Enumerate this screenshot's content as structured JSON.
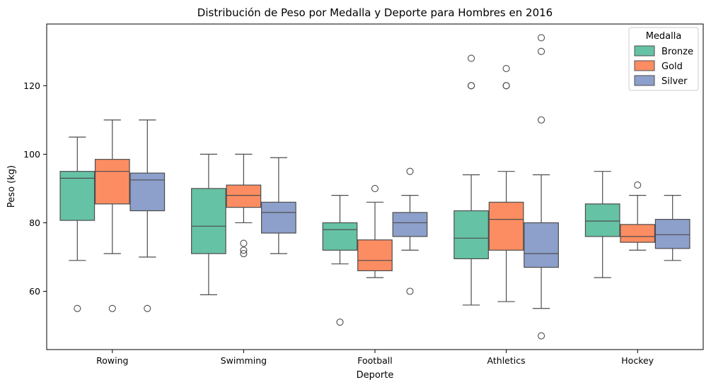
{
  "chart_data": {
    "type": "box",
    "title": "Distribución de Peso por Medalla y Deporte para Hombres en 2016",
    "xlabel": "Deporte",
    "ylabel": "Peso (kg)",
    "ylim": [
      43,
      138
    ],
    "yticks": [
      60,
      80,
      100,
      120
    ],
    "categories": [
      "Rowing",
      "Swimming",
      "Football",
      "Athletics",
      "Hockey"
    ],
    "legend": {
      "title": "Medalla",
      "position": "top-right"
    },
    "grid": false,
    "series": [
      {
        "name": "Bronze",
        "color": "#66c2a5",
        "boxes": [
          {
            "whislo": 69,
            "q1": 80.7,
            "med": 93,
            "q3": 95,
            "whishi": 105,
            "fliers": [
              55
            ]
          },
          {
            "whislo": 59,
            "q1": 71,
            "med": 79,
            "q3": 90,
            "whishi": 100,
            "fliers": []
          },
          {
            "whislo": 68,
            "q1": 72,
            "med": 78,
            "q3": 80,
            "whishi": 88,
            "fliers": [
              51
            ]
          },
          {
            "whislo": 56,
            "q1": 69.5,
            "med": 75.5,
            "q3": 83.5,
            "whishi": 94,
            "fliers": [
              120,
              120,
              128
            ]
          },
          {
            "whislo": 64,
            "q1": 76,
            "med": 80.5,
            "q3": 85.5,
            "whishi": 95,
            "fliers": []
          }
        ]
      },
      {
        "name": "Gold",
        "color": "#fc8d62",
        "boxes": [
          {
            "whislo": 71,
            "q1": 85.5,
            "med": 95,
            "q3": 98.5,
            "whishi": 110,
            "fliers": [
              55
            ]
          },
          {
            "whislo": 80,
            "q1": 84.5,
            "med": 88,
            "q3": 91,
            "whishi": 100,
            "fliers": [
              71,
              72,
              74
            ]
          },
          {
            "whislo": 64,
            "q1": 66,
            "med": 69,
            "q3": 75,
            "whishi": 86,
            "fliers": [
              90
            ]
          },
          {
            "whislo": 57,
            "q1": 72,
            "med": 81,
            "q3": 86,
            "whishi": 95,
            "fliers": [
              120,
              120,
              125
            ]
          },
          {
            "whislo": 72,
            "q1": 74.3,
            "med": 76,
            "q3": 79.5,
            "whishi": 88,
            "fliers": [
              91
            ]
          }
        ]
      },
      {
        "name": "Silver",
        "color": "#8da0cb",
        "boxes": [
          {
            "whislo": 70,
            "q1": 83.5,
            "med": 92.5,
            "q3": 94.5,
            "whishi": 110,
            "fliers": [
              55
            ]
          },
          {
            "whislo": 71,
            "q1": 77,
            "med": 83,
            "q3": 86,
            "whishi": 99,
            "fliers": []
          },
          {
            "whislo": 72,
            "q1": 76,
            "med": 80,
            "q3": 83,
            "whishi": 88,
            "fliers": [
              60,
              95
            ]
          },
          {
            "whislo": 55,
            "q1": 67,
            "med": 71,
            "q3": 80,
            "whishi": 94,
            "fliers": [
              47,
              110,
              130,
              134
            ]
          },
          {
            "whislo": 69,
            "q1": 72.5,
            "med": 76.5,
            "q3": 81,
            "whishi": 88,
            "fliers": []
          }
        ]
      }
    ]
  }
}
